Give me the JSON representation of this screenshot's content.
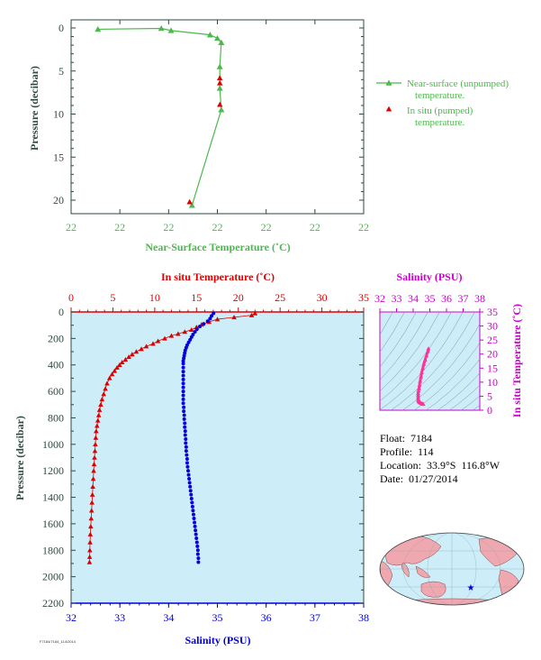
{
  "info": {
    "float": "Float:  7184",
    "profile": "Profile:  114",
    "location": "Location:  33.9°S  116.8°W",
    "date": "Date:  01/27/2014"
  },
  "footer_tag": "F7184/7184_114/2014",
  "colors": {
    "green": "#4db84d",
    "red": "#dd0000",
    "blue": "#0000dd",
    "magenta": "#cc00cc",
    "dark": "#2e4a3e",
    "panel_bg": "#cdeef8",
    "pink": "#ff3399",
    "land": "#f0a8b0",
    "ocean": "#cdeef8"
  },
  "chart_data": [
    {
      "id": "near-surface",
      "type": "line",
      "xlabel": "Near-Surface Temperature (˚C)",
      "ylabel": "Pressure (decibar)",
      "xticks": [
        "22",
        "22",
        "22",
        "22",
        "22",
        "22",
        "22"
      ],
      "yticks": [
        0,
        5,
        10,
        15,
        20
      ],
      "ylim": [
        0,
        22
      ],
      "legend_position": "right",
      "series": [
        {
          "name": "Near-surface (unpumped)\ntemperature.",
          "marker": "triangle",
          "color": "green",
          "points": [
            [
              0.55,
              0.15
            ],
            [
              1.85,
              0.05
            ],
            [
              2.05,
              0.3
            ],
            [
              2.85,
              0.8
            ],
            [
              3.0,
              1.2
            ],
            [
              3.08,
              1.7
            ],
            [
              3.05,
              4.5
            ],
            [
              3.05,
              7.0
            ],
            [
              3.08,
              9.5
            ],
            [
              2.48,
              20.6
            ]
          ]
        },
        {
          "name": "In situ (pumped)\ntemperature.",
          "marker": "triangle",
          "color": "red",
          "points": [
            [
              3.05,
              5.8
            ],
            [
              3.05,
              6.4
            ],
            [
              3.05,
              8.9
            ],
            [
              2.43,
              20.2
            ]
          ]
        }
      ]
    },
    {
      "id": "profile",
      "type": "scatter",
      "title": "In situ Temperature (˚C)",
      "xlabel": "Salinity (PSU)",
      "ylabel": "Pressure (decibar)",
      "temp_ticks": [
        0,
        5,
        10,
        15,
        20,
        25,
        30,
        35
      ],
      "temp_lim": [
        0,
        35
      ],
      "sal_ticks": [
        32,
        33,
        34,
        35,
        36,
        37,
        38
      ],
      "sal_lim": [
        32,
        38
      ],
      "pressure_ticks": [
        0,
        200,
        400,
        600,
        800,
        1000,
        1200,
        1400,
        1600,
        1800,
        2000,
        2200
      ],
      "pressure_lim": [
        0,
        2200
      ],
      "temperature": [
        [
          22.0,
          10
        ],
        [
          21.6,
          25
        ],
        [
          19.5,
          40
        ],
        [
          17.5,
          55
        ],
        [
          16.5,
          75
        ],
        [
          15.6,
          95
        ],
        [
          15.0,
          115
        ],
        [
          14.4,
          135
        ],
        [
          13.6,
          150
        ],
        [
          12.8,
          165
        ],
        [
          12.0,
          180
        ],
        [
          11.2,
          200
        ],
        [
          10.4,
          220
        ],
        [
          9.8,
          240
        ],
        [
          9.0,
          260
        ],
        [
          8.4,
          280
        ],
        [
          7.8,
          300
        ],
        [
          7.3,
          320
        ],
        [
          6.9,
          340
        ],
        [
          6.5,
          360
        ],
        [
          6.1,
          380
        ],
        [
          5.8,
          400
        ],
        [
          5.5,
          420
        ],
        [
          5.2,
          445
        ],
        [
          4.9,
          470
        ],
        [
          4.6,
          500
        ],
        [
          4.3,
          540
        ],
        [
          4.1,
          580
        ],
        [
          3.9,
          620
        ],
        [
          3.7,
          660
        ],
        [
          3.55,
          700
        ],
        [
          3.4,
          740
        ],
        [
          3.3,
          780
        ],
        [
          3.2,
          820
        ],
        [
          3.1,
          860
        ],
        [
          3.0,
          900
        ],
        [
          2.95,
          950
        ],
        [
          2.9,
          1000
        ],
        [
          2.85,
          1050
        ],
        [
          2.8,
          1100
        ],
        [
          2.75,
          1150
        ],
        [
          2.7,
          1200
        ],
        [
          2.65,
          1260
        ],
        [
          2.6,
          1320
        ],
        [
          2.55,
          1380
        ],
        [
          2.5,
          1440
        ],
        [
          2.45,
          1500
        ],
        [
          2.4,
          1560
        ],
        [
          2.35,
          1620
        ],
        [
          2.3,
          1680
        ],
        [
          2.27,
          1740
        ],
        [
          2.24,
          1800
        ],
        [
          2.22,
          1850
        ],
        [
          2.2,
          1890
        ]
      ],
      "salinity": [
        [
          34.92,
          10
        ],
        [
          34.88,
          30
        ],
        [
          34.85,
          50
        ],
        [
          34.8,
          70
        ],
        [
          34.72,
          90
        ],
        [
          34.64,
          110
        ],
        [
          34.58,
          130
        ],
        [
          34.54,
          150
        ],
        [
          34.5,
          170
        ],
        [
          34.47,
          190
        ],
        [
          34.44,
          210
        ],
        [
          34.41,
          230
        ],
        [
          34.38,
          250
        ],
        [
          34.36,
          270
        ],
        [
          34.34,
          290
        ],
        [
          34.33,
          310
        ],
        [
          34.32,
          330
        ],
        [
          34.31,
          350
        ],
        [
          34.3,
          370
        ],
        [
          34.3,
          390
        ],
        [
          34.3,
          420
        ],
        [
          34.3,
          450
        ],
        [
          34.3,
          480
        ],
        [
          34.3,
          510
        ],
        [
          34.3,
          540
        ],
        [
          34.3,
          570
        ],
        [
          34.3,
          600
        ],
        [
          34.3,
          630
        ],
        [
          34.3,
          660
        ],
        [
          34.3,
          690
        ],
        [
          34.31,
          720
        ],
        [
          34.31,
          750
        ],
        [
          34.32,
          780
        ],
        [
          34.32,
          810
        ],
        [
          34.33,
          840
        ],
        [
          34.33,
          870
        ],
        [
          34.34,
          900
        ],
        [
          34.34,
          930
        ],
        [
          34.35,
          960
        ],
        [
          34.35,
          990
        ],
        [
          34.36,
          1020
        ],
        [
          34.36,
          1050
        ],
        [
          34.37,
          1080
        ],
        [
          34.38,
          1110
        ],
        [
          34.38,
          1140
        ],
        [
          34.39,
          1170
        ],
        [
          34.4,
          1200
        ],
        [
          34.41,
          1230
        ],
        [
          34.42,
          1260
        ],
        [
          34.43,
          1290
        ],
        [
          34.44,
          1320
        ],
        [
          34.45,
          1350
        ],
        [
          34.46,
          1380
        ],
        [
          34.47,
          1410
        ],
        [
          34.48,
          1440
        ],
        [
          34.49,
          1470
        ],
        [
          34.5,
          1500
        ],
        [
          34.51,
          1530
        ],
        [
          34.52,
          1560
        ],
        [
          34.53,
          1590
        ],
        [
          34.54,
          1620
        ],
        [
          34.55,
          1650
        ],
        [
          34.56,
          1680
        ],
        [
          34.57,
          1710
        ],
        [
          34.58,
          1740
        ],
        [
          34.59,
          1770
        ],
        [
          34.6,
          1800
        ],
        [
          34.6,
          1830
        ],
        [
          34.61,
          1860
        ],
        [
          34.61,
          1890
        ]
      ]
    },
    {
      "id": "ts",
      "type": "scatter",
      "title": "Salinity (PSU)",
      "ylabel": "In situ Temperature (˚C)",
      "sal_ticks": [
        32,
        33,
        34,
        35,
        36,
        37,
        38
      ],
      "sal_lim": [
        32,
        38
      ],
      "temp_ticks": [
        0,
        5,
        10,
        15,
        20,
        25,
        30,
        35
      ],
      "temp_lim": [
        0,
        35
      ],
      "points": [
        [
          34.92,
          22.0
        ],
        [
          34.88,
          21.0
        ],
        [
          34.8,
          19.5
        ],
        [
          34.72,
          18.0
        ],
        [
          34.64,
          16.5
        ],
        [
          34.58,
          15.0
        ],
        [
          34.52,
          13.6
        ],
        [
          34.47,
          12.0
        ],
        [
          34.42,
          10.4
        ],
        [
          34.38,
          9.0
        ],
        [
          34.35,
          7.8
        ],
        [
          34.32,
          6.9
        ],
        [
          34.3,
          6.1
        ],
        [
          34.3,
          5.5
        ],
        [
          34.3,
          4.9
        ],
        [
          34.3,
          4.3
        ],
        [
          34.31,
          3.9
        ],
        [
          34.32,
          3.55
        ],
        [
          34.33,
          3.3
        ],
        [
          34.35,
          3.1
        ],
        [
          34.38,
          2.9
        ],
        [
          34.42,
          2.75
        ],
        [
          34.46,
          2.6
        ],
        [
          34.5,
          2.45
        ],
        [
          34.55,
          2.3
        ],
        [
          34.58,
          2.24
        ],
        [
          34.61,
          2.2
        ]
      ]
    }
  ]
}
